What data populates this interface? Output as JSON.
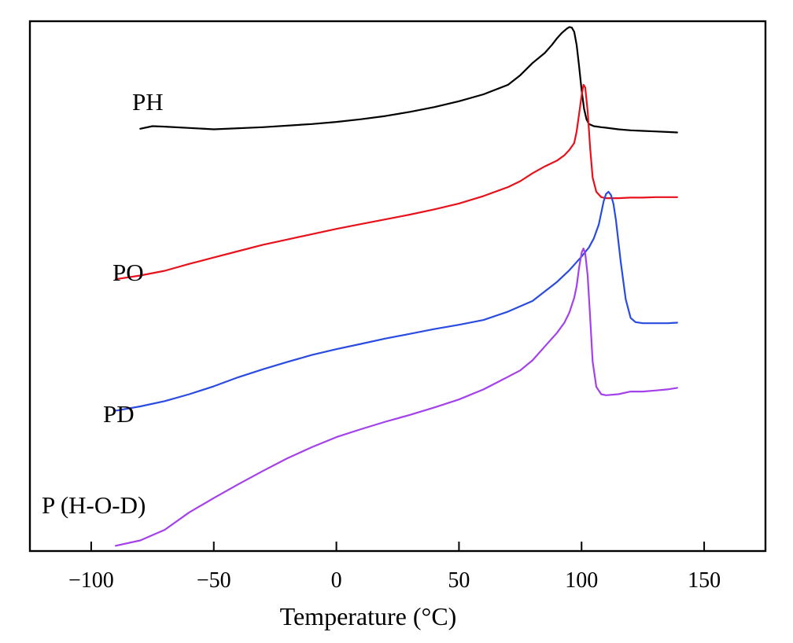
{
  "chart_data": {
    "type": "line",
    "title": "",
    "xlabel": "Temperature (°C)",
    "ylabel": "",
    "xlim": [
      -125,
      175
    ],
    "ylim": [
      0,
      100
    ],
    "xticks": [
      -100,
      -50,
      0,
      50,
      100,
      150
    ],
    "xtick_labels": [
      "−100",
      "−50",
      "0",
      "50",
      "100",
      "150"
    ],
    "grid": false,
    "series": [
      {
        "name": "PH",
        "label": "PH",
        "color": "#000000",
        "x": [
          -80,
          -75,
          -70,
          -50,
          -30,
          -10,
          0,
          10,
          20,
          30,
          40,
          50,
          60,
          70,
          75,
          80,
          85,
          88,
          90,
          92,
          94,
          95,
          96,
          97,
          98,
          99,
          100,
          101,
          102,
          103,
          105,
          108,
          110,
          115,
          120,
          125,
          130,
          135,
          139
        ],
        "y": [
          79.7,
          80.2,
          80.1,
          79.6,
          80.0,
          80.6,
          81.0,
          81.5,
          82.1,
          82.9,
          83.8,
          84.9,
          86.2,
          88.0,
          89.8,
          92.1,
          94.0,
          95.6,
          96.8,
          97.8,
          98.6,
          98.9,
          98.8,
          98.0,
          95.5,
          91.5,
          87.0,
          83.5,
          81.5,
          80.6,
          80.2,
          80.0,
          79.9,
          79.6,
          79.4,
          79.3,
          79.2,
          79.1,
          79.0
        ]
      },
      {
        "name": "PO",
        "label": "PO",
        "color": "#e8111b",
        "x": [
          -90,
          -80,
          -70,
          -60,
          -50,
          -40,
          -30,
          -20,
          -10,
          0,
          10,
          20,
          30,
          40,
          50,
          60,
          70,
          75,
          80,
          85,
          90,
          93,
          95,
          97,
          98,
          99,
          100,
          100.8,
          101.5,
          102.5,
          103.5,
          104.5,
          106,
          108,
          110,
          115,
          120,
          125,
          130,
          135,
          139
        ],
        "y": [
          51.3,
          52.0,
          52.9,
          54.2,
          55.4,
          56.6,
          57.8,
          58.8,
          59.8,
          60.8,
          61.7,
          62.6,
          63.5,
          64.5,
          65.6,
          67.0,
          68.7,
          69.8,
          71.3,
          72.6,
          73.7,
          74.7,
          75.7,
          77.0,
          79.2,
          82.5,
          86.0,
          88.0,
          87.5,
          83.0,
          76.0,
          70.5,
          67.8,
          66.8,
          66.6,
          66.6,
          66.7,
          66.7,
          66.8,
          66.8,
          66.8
        ]
      },
      {
        "name": "PD",
        "label": "PD",
        "color": "#2a4be0",
        "x": [
          -90,
          -80,
          -70,
          -60,
          -50,
          -40,
          -30,
          -20,
          -10,
          0,
          10,
          20,
          30,
          40,
          50,
          60,
          70,
          80,
          90,
          95,
          100,
          103,
          105,
          107,
          108,
          109,
          110,
          111,
          112,
          113,
          114,
          116,
          118,
          120,
          122,
          125,
          130,
          135,
          139
        ],
        "y": [
          26.5,
          27.3,
          28.3,
          29.6,
          31.1,
          32.8,
          34.3,
          35.7,
          37.0,
          38.1,
          39.1,
          40.1,
          41.0,
          41.9,
          42.7,
          43.6,
          45.2,
          47.2,
          50.8,
          53.0,
          55.6,
          57.3,
          59.0,
          61.6,
          63.8,
          66.0,
          67.4,
          67.8,
          67.2,
          65.5,
          62.5,
          54.5,
          47.5,
          44.0,
          43.2,
          43.0,
          43.0,
          43.0,
          43.1
        ]
      },
      {
        "name": "P (H-O-D)",
        "label": "P (H-O-D)",
        "color": "#a341ea",
        "x": [
          -90,
          -80,
          -70,
          -60,
          -50,
          -40,
          -30,
          -20,
          -10,
          0,
          10,
          20,
          30,
          40,
          50,
          60,
          70,
          75,
          80,
          85,
          90,
          93,
          95,
          97,
          98,
          99,
          100,
          100.8,
          101.5,
          102.5,
          103.5,
          104.5,
          106,
          108,
          110,
          115,
          120,
          125,
          130,
          135,
          139
        ],
        "y": [
          1.0,
          2.0,
          4.0,
          7.3,
          10.0,
          12.6,
          15.1,
          17.5,
          19.6,
          21.5,
          23.0,
          24.4,
          25.7,
          27.1,
          28.6,
          30.5,
          32.9,
          34.1,
          36.0,
          38.6,
          41.2,
          43.1,
          45.0,
          47.8,
          50.0,
          53.5,
          56.3,
          57.1,
          56.2,
          52.0,
          44.0,
          35.8,
          31.0,
          29.6,
          29.4,
          29.6,
          30.1,
          30.1,
          30.3,
          30.5,
          30.8
        ]
      }
    ]
  }
}
